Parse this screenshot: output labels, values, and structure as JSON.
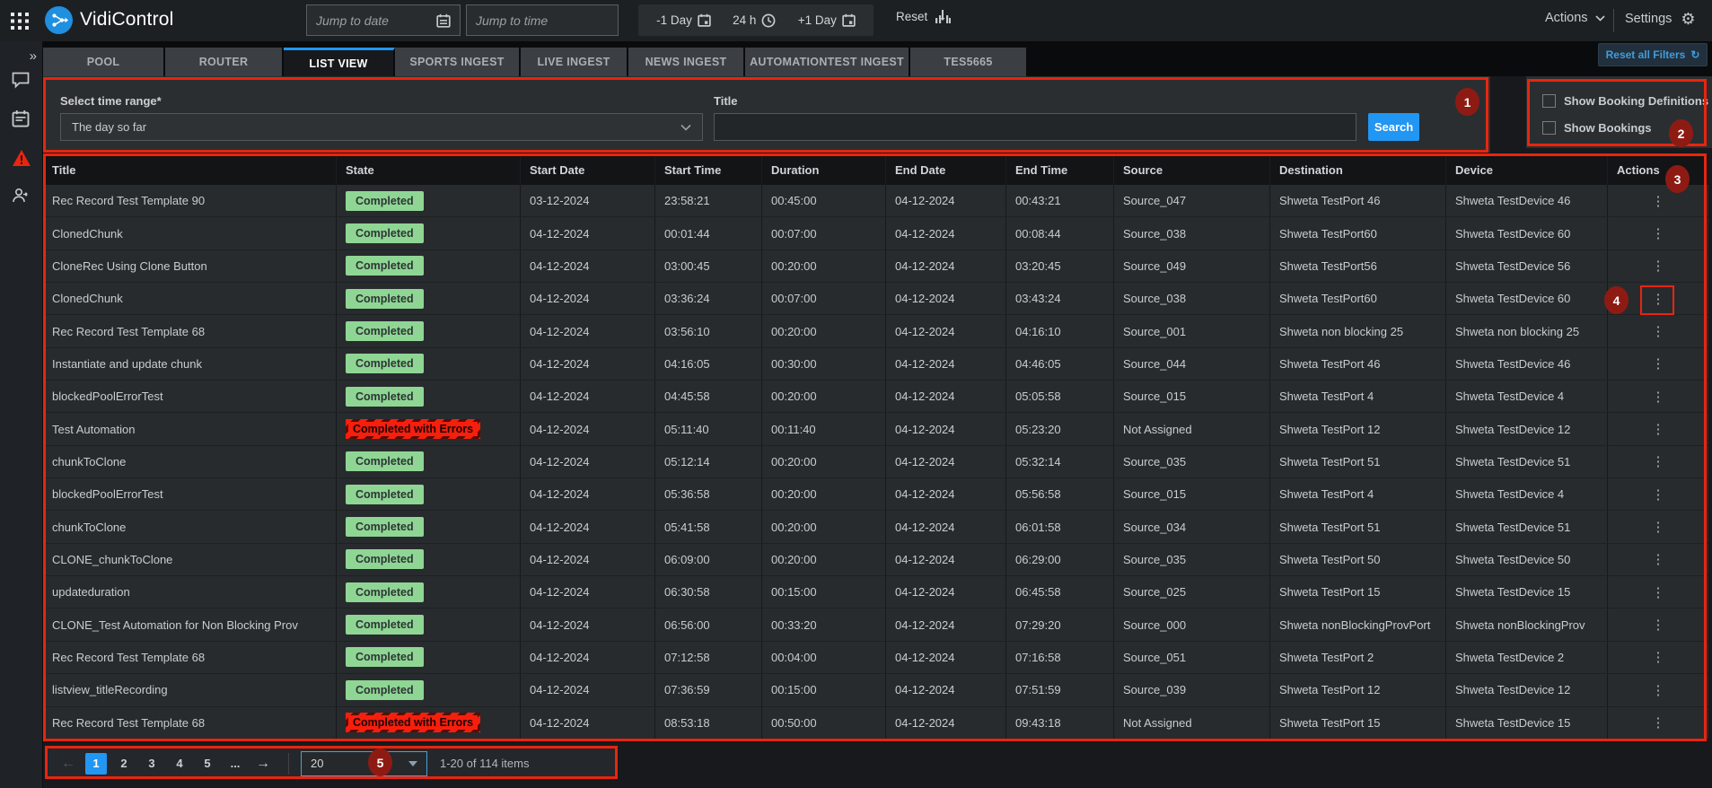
{
  "app": {
    "title": "VidiControl"
  },
  "topbar": {
    "jump_to_date_placeholder": "Jump to date",
    "jump_to_time_placeholder": "Jump to time",
    "minus_day_label": "-1 Day",
    "hours_label": "24 h",
    "plus_day_label": "+1 Day",
    "reset_label": "Reset",
    "actions_label": "Actions",
    "settings_label": "Settings"
  },
  "tabs": {
    "items": [
      {
        "label": "POOL",
        "active": false
      },
      {
        "label": "ROUTER",
        "active": false
      },
      {
        "label": "LIST VIEW",
        "active": true
      },
      {
        "label": "SPORTS INGEST",
        "active": false
      },
      {
        "label": "LIVE INGEST",
        "active": false
      },
      {
        "label": "NEWS INGEST",
        "active": false
      },
      {
        "label": "AUTOMATIONTEST INGEST",
        "active": false
      },
      {
        "label": "TES5665",
        "active": false
      }
    ],
    "reset_all_filters_label": "Reset all Filters"
  },
  "filters": {
    "time_range_label": "Select time range*",
    "time_range_value": "The day so far",
    "title_label": "Title",
    "title_value": "",
    "search_label": "Search",
    "show_booking_definitions_label": "Show Booking Definitions",
    "show_bookings_label": "Show Bookings"
  },
  "table": {
    "columns": [
      "Title",
      "State",
      "Start Date",
      "Start Time",
      "Duration",
      "End Date",
      "End Time",
      "Source",
      "Destination",
      "Device",
      "Actions"
    ],
    "rows": [
      {
        "title": "Rec Record Test Template 90",
        "state": "Completed",
        "start_date": "03-12-2024",
        "start_time": "23:58:21",
        "duration": "00:45:00",
        "end_date": "04-12-2024",
        "end_time": "00:43:21",
        "source": "Source_047",
        "destination": "Shweta TestPort 46",
        "device": "Shweta TestDevice 46"
      },
      {
        "title": "ClonedChunk",
        "state": "Completed",
        "start_date": "04-12-2024",
        "start_time": "00:01:44",
        "duration": "00:07:00",
        "end_date": "04-12-2024",
        "end_time": "00:08:44",
        "source": "Source_038",
        "destination": "Shweta TestPort60",
        "device": "Shweta TestDevice 60"
      },
      {
        "title": "CloneRec Using Clone Button",
        "state": "Completed",
        "start_date": "04-12-2024",
        "start_time": "03:00:45",
        "duration": "00:20:00",
        "end_date": "04-12-2024",
        "end_time": "03:20:45",
        "source": "Source_049",
        "destination": "Shweta TestPort56",
        "device": "Shweta TestDevice 56"
      },
      {
        "title": "ClonedChunk",
        "state": "Completed",
        "start_date": "04-12-2024",
        "start_time": "03:36:24",
        "duration": "00:07:00",
        "end_date": "04-12-2024",
        "end_time": "03:43:24",
        "source": "Source_038",
        "destination": "Shweta TestPort60",
        "device": "Shweta TestDevice 60"
      },
      {
        "title": "Rec Record Test Template 68",
        "state": "Completed",
        "start_date": "04-12-2024",
        "start_time": "03:56:10",
        "duration": "00:20:00",
        "end_date": "04-12-2024",
        "end_time": "04:16:10",
        "source": "Source_001",
        "destination": "Shweta non blocking 25",
        "device": "Shweta non blocking 25"
      },
      {
        "title": "Instantiate and update chunk",
        "state": "Completed",
        "start_date": "04-12-2024",
        "start_time": "04:16:05",
        "duration": "00:30:00",
        "end_date": "04-12-2024",
        "end_time": "04:46:05",
        "source": "Source_044",
        "destination": "Shweta TestPort 46",
        "device": "Shweta TestDevice 46"
      },
      {
        "title": "blockedPoolErrorTest",
        "state": "Completed",
        "start_date": "04-12-2024",
        "start_time": "04:45:58",
        "duration": "00:20:00",
        "end_date": "04-12-2024",
        "end_time": "05:05:58",
        "source": "Source_015",
        "destination": "Shweta TestPort 4",
        "device": "Shweta TestDevice 4"
      },
      {
        "title": "Test Automation",
        "state": "Completed with Errors",
        "start_date": "04-12-2024",
        "start_time": "05:11:40",
        "duration": "00:11:40",
        "end_date": "04-12-2024",
        "end_time": "05:23:20",
        "source": "Not Assigned",
        "destination": "Shweta TestPort 12",
        "device": "Shweta TestDevice 12"
      },
      {
        "title": "chunkToClone",
        "state": "Completed",
        "start_date": "04-12-2024",
        "start_time": "05:12:14",
        "duration": "00:20:00",
        "end_date": "04-12-2024",
        "end_time": "05:32:14",
        "source": "Source_035",
        "destination": "Shweta TestPort 51",
        "device": "Shweta TestDevice 51"
      },
      {
        "title": "blockedPoolErrorTest",
        "state": "Completed",
        "start_date": "04-12-2024",
        "start_time": "05:36:58",
        "duration": "00:20:00",
        "end_date": "04-12-2024",
        "end_time": "05:56:58",
        "source": "Source_015",
        "destination": "Shweta TestPort 4",
        "device": "Shweta TestDevice 4"
      },
      {
        "title": "chunkToClone",
        "state": "Completed",
        "start_date": "04-12-2024",
        "start_time": "05:41:58",
        "duration": "00:20:00",
        "end_date": "04-12-2024",
        "end_time": "06:01:58",
        "source": "Source_034",
        "destination": "Shweta TestPort 51",
        "device": "Shweta TestDevice 51"
      },
      {
        "title": "CLONE_chunkToClone",
        "state": "Completed",
        "start_date": "04-12-2024",
        "start_time": "06:09:00",
        "duration": "00:20:00",
        "end_date": "04-12-2024",
        "end_time": "06:29:00",
        "source": "Source_035",
        "destination": "Shweta TestPort 50",
        "device": "Shweta TestDevice 50"
      },
      {
        "title": "updateduration",
        "state": "Completed",
        "start_date": "04-12-2024",
        "start_time": "06:30:58",
        "duration": "00:15:00",
        "end_date": "04-12-2024",
        "end_time": "06:45:58",
        "source": "Source_025",
        "destination": "Shweta TestPort 15",
        "device": "Shweta TestDevice 15"
      },
      {
        "title": "CLONE_Test Automation for Non Blocking Prov",
        "state": "Completed",
        "start_date": "04-12-2024",
        "start_time": "06:56:00",
        "duration": "00:33:20",
        "end_date": "04-12-2024",
        "end_time": "07:29:20",
        "source": "Source_000",
        "destination": "Shweta nonBlockingProvPort",
        "device": "Shweta nonBlockingProv"
      },
      {
        "title": "Rec Record Test Template 68",
        "state": "Completed",
        "start_date": "04-12-2024",
        "start_time": "07:12:58",
        "duration": "00:04:00",
        "end_date": "04-12-2024",
        "end_time": "07:16:58",
        "source": "Source_051",
        "destination": "Shweta TestPort 2",
        "device": "Shweta TestDevice 2"
      },
      {
        "title": "listview_titleRecording",
        "state": "Completed",
        "start_date": "04-12-2024",
        "start_time": "07:36:59",
        "duration": "00:15:00",
        "end_date": "04-12-2024",
        "end_time": "07:51:59",
        "source": "Source_039",
        "destination": "Shweta TestPort 12",
        "device": "Shweta TestDevice 12"
      },
      {
        "title": "Rec Record Test Template 68",
        "state": "Completed with Errors",
        "start_date": "04-12-2024",
        "start_time": "08:53:18",
        "duration": "00:50:00",
        "end_date": "04-12-2024",
        "end_time": "09:43:18",
        "source": "Not Assigned",
        "destination": "Shweta TestPort 15",
        "device": "Shweta TestDevice 15"
      }
    ]
  },
  "pagination": {
    "prev_arrow": "←",
    "next_arrow": "→",
    "pages": [
      "1",
      "2",
      "3",
      "4",
      "5"
    ],
    "ellipsis": "...",
    "current_page": "1",
    "page_size": "20",
    "summary": "1-20 of 114 items"
  },
  "annotations": [
    "1",
    "2",
    "3",
    "4",
    "5"
  ],
  "colors": {
    "accent_blue": "#2196f3",
    "badge_green": "#8fd694",
    "badge_error_red": "#f61f0d",
    "annotation_red": "#e8250f",
    "annotation_circle_red": "#8e1b13"
  }
}
